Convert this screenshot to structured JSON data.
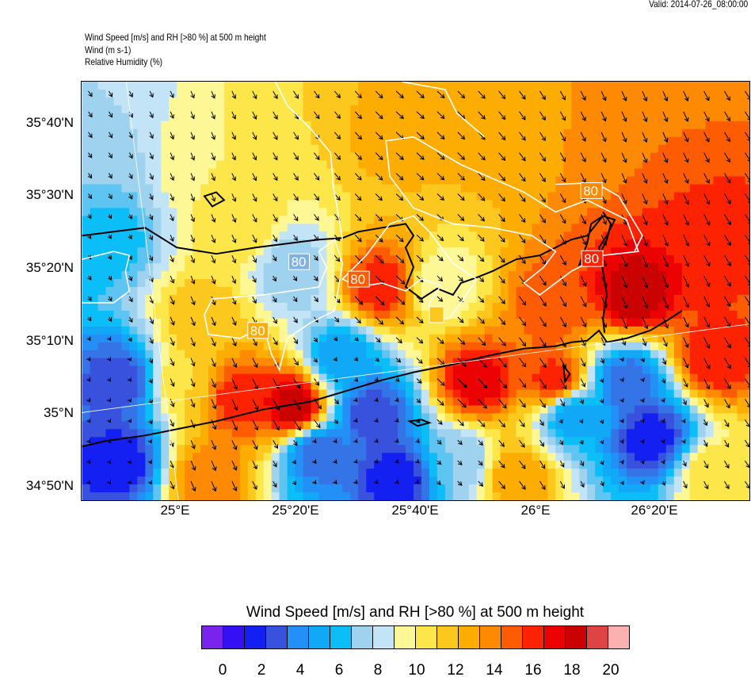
{
  "header": {
    "valid": "Valid: 2014-07-26_08:00:00",
    "title_lines": [
      "Wind Speed [m/s] and RH [>80 %] at 500 m height",
      "Wind   (m s-1)",
      "Relative Humidity   (%)"
    ]
  },
  "axes": {
    "lat_labels": [
      "35°40'N",
      "35°30'N",
      "35°20'N",
      "35°10'N",
      "35°N",
      "34°50'N"
    ],
    "lon_labels": [
      "25°E",
      "25°20'E",
      "25°40'E",
      "26°E",
      "26°20'E"
    ]
  },
  "contour_labels": [
    "80",
    "80",
    "80",
    "80",
    "80",
    "80",
    "80"
  ],
  "colorbar": {
    "title": "Wind Speed [m/s] and RH [>80 %] at 500 m height",
    "tick_labels": [
      "0",
      "2",
      "4",
      "6",
      "8",
      "10",
      "12",
      "14",
      "16",
      "18",
      "20"
    ],
    "colors": [
      "#7a22ee",
      "#3510f5",
      "#1420f2",
      "#3852de",
      "#3574e6",
      "#2390f8",
      "#12a8f8",
      "#0cbef8",
      "#5ec4f2",
      "#9ed2ee",
      "#c2e4f6",
      "#fdf796",
      "#fde64a",
      "#fdc81e",
      "#fdac02",
      "#fd8a02",
      "#fd5c02",
      "#fd2202",
      "#ec0202",
      "#ca0202",
      "#de4444",
      "#fdb0b0"
    ]
  }
}
